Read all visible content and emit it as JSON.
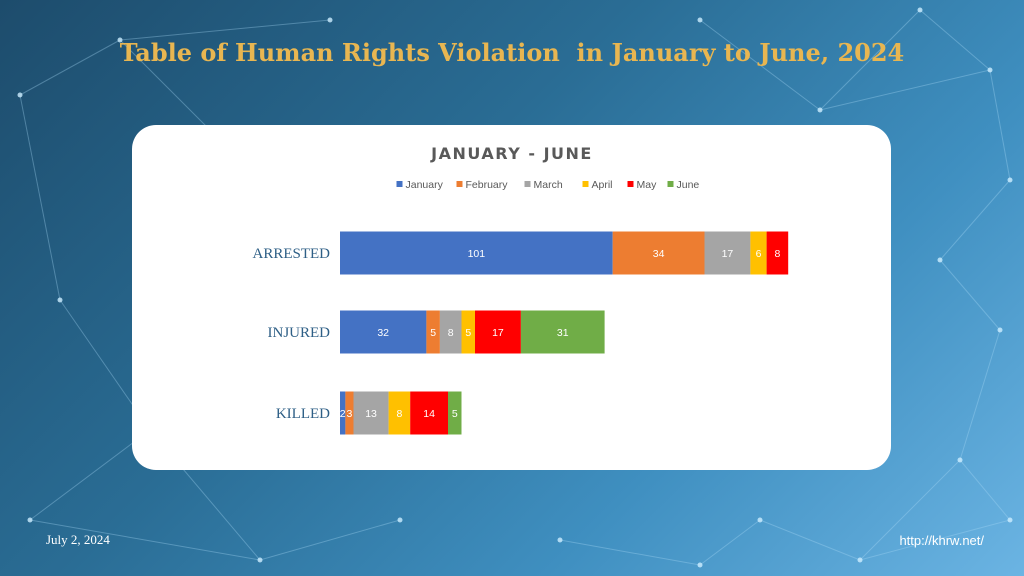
{
  "slide": {
    "title": "Table of Human Rights Violation  in January to June, 2024",
    "date": "July 2, 2024",
    "url": "http://khrw.net/"
  },
  "colors": {
    "title": "#e8b651",
    "card_bg": "#ffffff"
  },
  "chart_data": {
    "type": "bar",
    "orientation": "horizontal",
    "stacked": true,
    "title": "JANUARY - JUNE",
    "legend_position": "top",
    "grid": false,
    "categories": [
      "ARRESTED",
      "INJURED",
      "KILLED"
    ],
    "series": [
      {
        "name": "January",
        "color": "#4472c4",
        "values": [
          101,
          32,
          2
        ]
      },
      {
        "name": "February",
        "color": "#ed7d31",
        "values": [
          34,
          5,
          3
        ]
      },
      {
        "name": "March",
        "color": "#a5a5a5",
        "values": [
          17,
          8,
          13
        ]
      },
      {
        "name": "April",
        "color": "#ffc000",
        "values": [
          6,
          5,
          8
        ]
      },
      {
        "name": "May",
        "color": "#ff0000",
        "values": [
          8,
          17,
          14
        ]
      },
      {
        "name": "June",
        "color": "#70ad47",
        "values": [
          null,
          31,
          5
        ]
      }
    ]
  }
}
